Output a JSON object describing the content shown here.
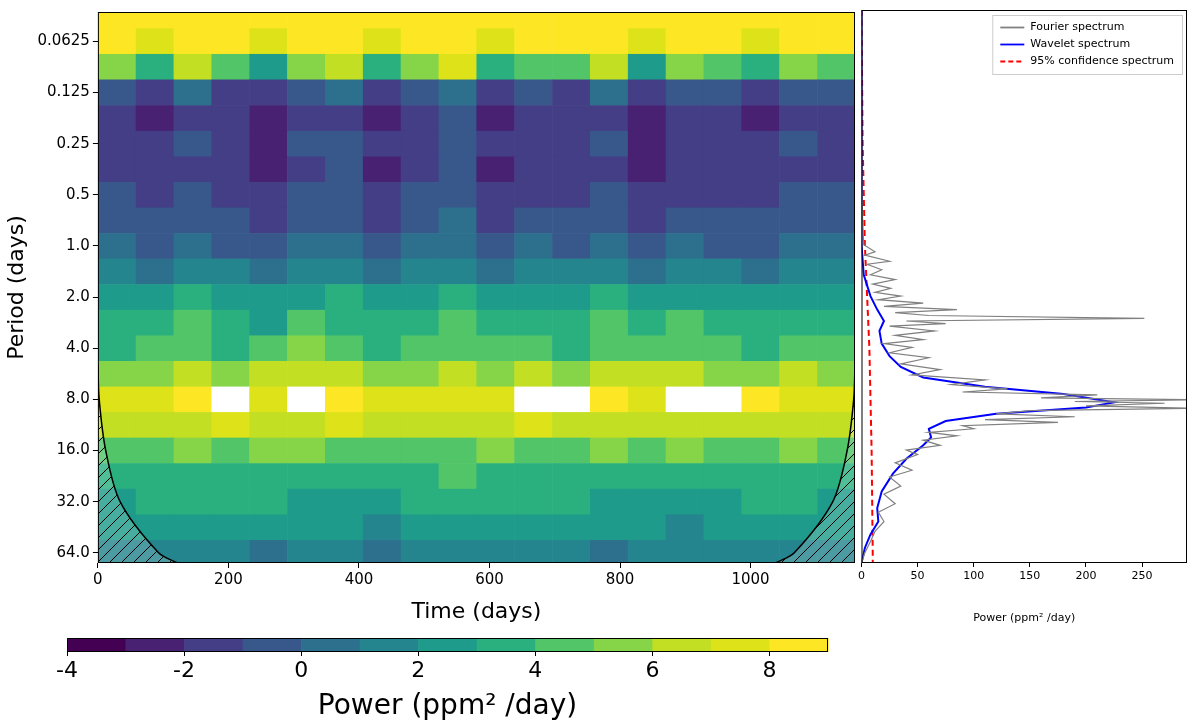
{
  "chart_data": [
    {
      "type": "heatmap",
      "x_label": "Time (days)",
      "y_label": "Period (days)",
      "log": "y",
      "grid": false,
      "xlim": [
        0,
        1160
      ],
      "xticks": [
        0,
        200,
        400,
        600,
        800,
        1000
      ],
      "ylim": [
        0.042,
        73.5
      ],
      "yticks": [
        0.0625,
        0.125,
        0.25,
        0.5,
        {
          "value": 1,
          "label": "1.0"
        },
        {
          "value": 2,
          "label": "2.0"
        },
        {
          "value": 4,
          "label": "4.0"
        },
        {
          "value": 8,
          "label": "8.0"
        },
        {
          "value": 16,
          "label": "16.0"
        },
        {
          "value": 32,
          "label": "32.0"
        },
        {
          "value": 64,
          "label": "64.0"
        }
      ],
      "heatmap": {
        "time": [
          29,
          87,
          145,
          203,
          261,
          319,
          377,
          435,
          493,
          551,
          609,
          667,
          725,
          783,
          841,
          899,
          957,
          1015,
          1073,
          1131
        ],
        "period": [
          0.044,
          0.0625,
          0.088,
          0.125,
          0.177,
          0.25,
          0.354,
          0.5,
          0.707,
          1,
          1.41,
          2,
          2.83,
          4,
          5.66,
          8,
          11.3,
          16,
          22.6,
          32,
          45.3,
          64
        ],
        "power": [
          [
            8.6,
            8.2,
            8.7,
            8.5,
            8.1,
            8.6,
            8.8,
            8.3,
            8.7,
            8.8,
            8.2,
            8.6,
            8.5,
            8.7,
            8.1,
            8.6,
            8.5,
            8.2,
            8.6,
            8.4
          ],
          [
            8.4,
            7.6,
            8.6,
            8.5,
            7.8,
            8.3,
            8.7,
            7.9,
            8.6,
            8.8,
            7.5,
            8.4,
            8.2,
            8.6,
            7.7,
            8.5,
            8.3,
            7.6,
            8.4,
            8.1
          ],
          [
            5.2,
            3.1,
            6.5,
            4.0,
            2.8,
            5.5,
            6.8,
            3.3,
            5.9,
            7.2,
            3.0,
            4.8,
            4.1,
            6.0,
            2.9,
            5.1,
            4.4,
            3.2,
            5.6,
            4.7
          ],
          [
            -0.8,
            -1.5,
            0.2,
            -1.2,
            -1.8,
            -0.5,
            0.4,
            -1.4,
            -0.3,
            0.6,
            -1.6,
            -0.9,
            -1.1,
            0.1,
            -1.7,
            -0.6,
            -1.0,
            -1.5,
            -0.2,
            -0.7
          ],
          [
            -1.6,
            -2.2,
            -1.3,
            -1.9,
            -2.5,
            -1.4,
            -1.1,
            -2.3,
            -1.5,
            -0.9,
            -2.4,
            -1.8,
            -2.0,
            -1.2,
            -2.6,
            -1.7,
            -1.9,
            -2.1,
            -1.4,
            -1.6
          ],
          [
            -1.2,
            -1.8,
            -0.9,
            -1.5,
            -2.1,
            -1.0,
            -0.8,
            -1.9,
            -1.1,
            -0.6,
            -2.0,
            -1.4,
            -1.6,
            -0.9,
            -2.2,
            -1.3,
            -1.5,
            -1.7,
            -1.0,
            -1.2
          ],
          [
            -1.5,
            -2.0,
            -1.1,
            -1.7,
            -2.3,
            -1.2,
            -1.0,
            -2.1,
            -1.3,
            -0.8,
            -2.2,
            -1.6,
            -1.8,
            -1.1,
            -2.4,
            -1.5,
            -1.7,
            -1.9,
            -1.2,
            -1.4
          ],
          [
            -1.0,
            -1.6,
            -0.7,
            -1.3,
            -1.9,
            -0.8,
            -0.6,
            -1.7,
            -0.9,
            -0.4,
            -1.8,
            -1.2,
            -1.4,
            -0.7,
            -2.0,
            -1.1,
            -1.3,
            -1.5,
            -0.8,
            -1.0
          ],
          [
            -0.5,
            -1.0,
            -0.2,
            -0.8,
            -1.3,
            -0.3,
            -0.1,
            -1.1,
            -0.4,
            0.1,
            -1.2,
            -0.7,
            -0.9,
            -0.2,
            -1.4,
            -0.6,
            -0.8,
            -1.0,
            -0.3,
            -0.5
          ],
          [
            0.2,
            -0.3,
            0.5,
            -0.1,
            -0.6,
            0.4,
            0.6,
            -0.4,
            0.3,
            0.8,
            -0.5,
            0.0,
            -0.2,
            0.5,
            -0.7,
            0.1,
            -0.1,
            -0.3,
            0.4,
            0.2
          ],
          [
            1.3,
            0.9,
            1.6,
            1.1,
            0.7,
            1.5,
            1.8,
            0.8,
            1.4,
            1.9,
            0.8,
            1.2,
            1.0,
            1.6,
            0.6,
            1.3,
            1.1,
            0.9,
            1.5,
            1.2
          ],
          [
            2.6,
            2.1,
            3.0,
            2.4,
            2.0,
            2.9,
            3.2,
            2.2,
            2.8,
            3.4,
            2.1,
            2.6,
            2.3,
            3.0,
            2.0,
            2.7,
            2.5,
            2.2,
            2.9,
            2.4
          ],
          [
            3.4,
            3.0,
            4.1,
            3.6,
            2.9,
            4.6,
            3.9,
            3.2,
            3.8,
            4.2,
            3.1,
            3.7,
            3.3,
            4.0,
            3.0,
            4.4,
            3.6,
            3.2,
            3.9,
            3.5
          ],
          [
            3.8,
            4.2,
            4.6,
            3.9,
            4.4,
            5.0,
            4.7,
            3.6,
            4.3,
            4.8,
            4.0,
            4.5,
            3.7,
            4.9,
            4.1,
            4.6,
            4.2,
            3.8,
            4.4,
            4.0
          ],
          [
            5.4,
            5.9,
            6.3,
            5.6,
            6.0,
            6.6,
            6.8,
            5.5,
            5.8,
            6.2,
            5.7,
            6.4,
            5.9,
            6.9,
            6.1,
            6.3,
            5.8,
            5.6,
            6.0,
            5.5
          ],
          [
            7.3,
            7.8,
            8.2,
            9.3,
            7.6,
            9.2,
            8.4,
            7.4,
            7.6,
            7.2,
            7.8,
            9.1,
            9.2,
            8.3,
            7.6,
            9.3,
            9.1,
            8.0,
            7.7,
            7.4
          ],
          [
            6.4,
            6.8,
            6.2,
            7.1,
            6.5,
            6.9,
            7.3,
            6.3,
            6.0,
            6.6,
            6.2,
            7.0,
            6.7,
            6.4,
            6.1,
            6.8,
            6.5,
            6.9,
            6.3,
            6.0
          ],
          [
            4.6,
            4.9,
            5.3,
            4.4,
            5.0,
            5.5,
            4.7,
            4.8,
            4.2,
            4.6,
            5.1,
            4.5,
            4.9,
            5.2,
            4.3,
            5.4,
            4.8,
            4.6,
            5.0,
            4.4
          ],
          [
            3.6,
            3.9,
            3.5,
            3.2,
            3.7,
            3.4,
            3.1,
            3.6,
            3.9,
            4.1,
            3.8,
            3.4,
            3.0,
            3.3,
            3.6,
            3.2,
            3.5,
            3.8,
            3.4,
            3.1
          ],
          [
            2.8,
            3.1,
            3.3,
            3.4,
            3.0,
            2.7,
            2.5,
            2.9,
            3.3,
            3.5,
            3.6,
            3.4,
            3.1,
            2.8,
            2.6,
            2.9,
            2.7,
            3.0,
            3.2,
            2.9
          ],
          [
            2.2,
            2.4,
            2.6,
            2.3,
            2.0,
            2.5,
            2.1,
            1.8,
            2.4,
            2.7,
            2.5,
            2.2,
            2.0,
            2.3,
            2.1,
            1.9,
            2.4,
            2.2,
            2.0,
            2.3
          ],
          [
            1.5,
            1.0,
            1.8,
            1.3,
            0.9,
            1.6,
            1.2,
            0.8,
            1.4,
            1.1,
            1.7,
            1.0,
            1.5,
            0.9,
            1.3,
            1.6,
            1.1,
            1.4,
            1.0,
            1.2
          ]
        ]
      },
      "cone_of_influence": [
        {
          "time": [
            0,
            2,
            12,
            34,
            93,
            122
          ],
          "period": [
            5,
            8,
            16,
            32,
            64,
            73.5
          ]
        },
        {
          "time": [
            1160,
            1158,
            1148,
            1126,
            1067,
            1038
          ],
          "period": [
            5,
            8,
            16,
            32,
            64,
            73.5
          ]
        }
      ],
      "colorbar": {
        "label": "Power (ppm² /day)",
        "range": [
          -4,
          9
        ],
        "ticks": [
          -4,
          -2,
          0,
          2,
          4,
          6,
          8
        ]
      }
    },
    {
      "type": "line",
      "x_label": "Power (ppm² /day)",
      "log": "y",
      "grid": false,
      "legend": "upper right",
      "tick_labels": "x",
      "xlim": [
        0,
        290
      ],
      "xticks": [
        0,
        50,
        100,
        150,
        200,
        250
      ],
      "ylim": [
        0.042,
        73.5
      ],
      "series": [
        {
          "name": "Fourier spectrum",
          "color": "#808080",
          "line_style": "solid",
          "period": [
            0.042,
            0.5,
            1.0,
            1.1,
            1.15,
            1.25,
            1.3,
            1.4,
            1.5,
            1.6,
            1.7,
            1.8,
            1.9,
            2.0,
            2.1,
            2.2,
            2.3,
            2.4,
            2.5,
            2.6,
            2.7,
            2.8,
            2.9,
            3.0,
            3.2,
            3.4,
            3.6,
            3.8,
            4.0,
            4.3,
            4.6,
            5.0,
            5.4,
            5.8,
            6.2,
            6.6,
            7.0,
            7.3,
            7.6,
            7.9,
            8.1,
            8.3,
            8.5,
            8.8,
            9.1,
            9.4,
            9.8,
            10.2,
            10.6,
            11.0,
            11.5,
            12.0,
            12.6,
            13.2,
            14,
            15,
            16,
            17,
            19,
            21,
            23,
            26,
            29,
            33,
            37,
            42,
            48,
            55,
            64,
            73.5
          ],
          "power": [
            0,
            0,
            2,
            12,
            3,
            25,
            5,
            18,
            8,
            30,
            10,
            26,
            12,
            35,
            15,
            55,
            20,
            85,
            30,
            60,
            252,
            40,
            75,
            25,
            65,
            30,
            55,
            20,
            45,
            25,
            60,
            35,
            70,
            45,
            110,
            80,
            130,
            90,
            210,
            160,
            300,
            190,
            270,
            200,
            300,
            150,
            120,
            190,
            110,
            175,
            90,
            100,
            60,
            85,
            55,
            70,
            40,
            50,
            30,
            45,
            25,
            35,
            20,
            30,
            15,
            20,
            12,
            8,
            3,
            0
          ]
        },
        {
          "name": "Wavelet spectrum",
          "color": "#0000ff",
          "line_style": "solid",
          "period": [
            0.042,
            1.0,
            1.5,
            2.0,
            2.4,
            2.8,
            3.2,
            3.8,
            4.5,
            5.2,
            6.0,
            6.8,
            7.5,
            8.4,
            9.0,
            9.8,
            10.8,
            12.0,
            13.5,
            15,
            18,
            22,
            28,
            35,
            42,
            50,
            60,
            73.5
          ],
          "power": [
            0,
            0,
            2,
            8,
            14,
            20,
            16,
            18,
            25,
            35,
            55,
            110,
            180,
            225,
            200,
            120,
            75,
            60,
            62,
            55,
            40,
            28,
            18,
            14,
            15,
            8,
            3,
            0
          ]
        },
        {
          "name": "95% confidence spectrum",
          "color": "#ff0000",
          "line_style": "dashed",
          "period": [
            0.042,
            0.25,
            1,
            2,
            4,
            8,
            16,
            32,
            64,
            73.5
          ],
          "power": [
            0,
            1,
            3,
            5,
            7,
            8,
            9,
            9.5,
            10,
            10
          ]
        }
      ]
    }
  ]
}
